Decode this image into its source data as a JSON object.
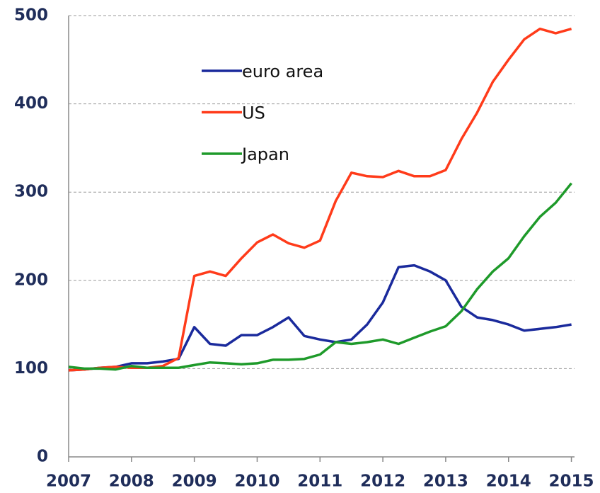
{
  "chart_data": {
    "type": "line",
    "x": [
      2007,
      2007.25,
      2007.5,
      2007.75,
      2008,
      2008.25,
      2008.5,
      2008.75,
      2009,
      2009.25,
      2009.5,
      2009.75,
      2010,
      2010.25,
      2010.5,
      2010.75,
      2011,
      2011.25,
      2011.5,
      2011.75,
      2012,
      2012.25,
      2012.5,
      2012.75,
      2013,
      2013.25,
      2013.5,
      2013.75,
      2014,
      2014.25,
      2014.5,
      2014.75,
      2015
    ],
    "series": [
      {
        "name": "euro area",
        "color": "#1a2a9c",
        "values": [
          98,
          99,
          101,
          102,
          106,
          106,
          108,
          111,
          147,
          128,
          126,
          138,
          138,
          147,
          158,
          137,
          133,
          130,
          133,
          150,
          175,
          215,
          217,
          210,
          200,
          170,
          158,
          155,
          150,
          143,
          145,
          147,
          150
        ]
      },
      {
        "name": "US",
        "color": "#ff3b1a",
        "values": [
          98,
          99,
          101,
          102,
          101,
          101,
          103,
          112,
          205,
          210,
          205,
          225,
          243,
          252,
          242,
          237,
          245,
          290,
          322,
          318,
          317,
          324,
          318,
          318,
          325,
          360,
          390,
          425,
          450,
          473,
          485,
          480,
          485
        ]
      },
      {
        "name": "Japan",
        "color": "#1e9a2a",
        "values": [
          102,
          100,
          100,
          99,
          103,
          101,
          101,
          101,
          104,
          107,
          106,
          105,
          106,
          110,
          110,
          111,
          116,
          130,
          128,
          130,
          133,
          128,
          135,
          142,
          148,
          165,
          190,
          210,
          225,
          250,
          272,
          288,
          310
        ]
      }
    ],
    "xlim": [
      2007,
      2015.05
    ],
    "xticks": [
      2007,
      2008,
      2009,
      2010,
      2011,
      2012,
      2013,
      2014,
      2015
    ],
    "ylim": [
      0,
      500
    ],
    "yticks": [
      0,
      100,
      200,
      300,
      400,
      500
    ],
    "grid": true,
    "legend": "upper-left"
  }
}
